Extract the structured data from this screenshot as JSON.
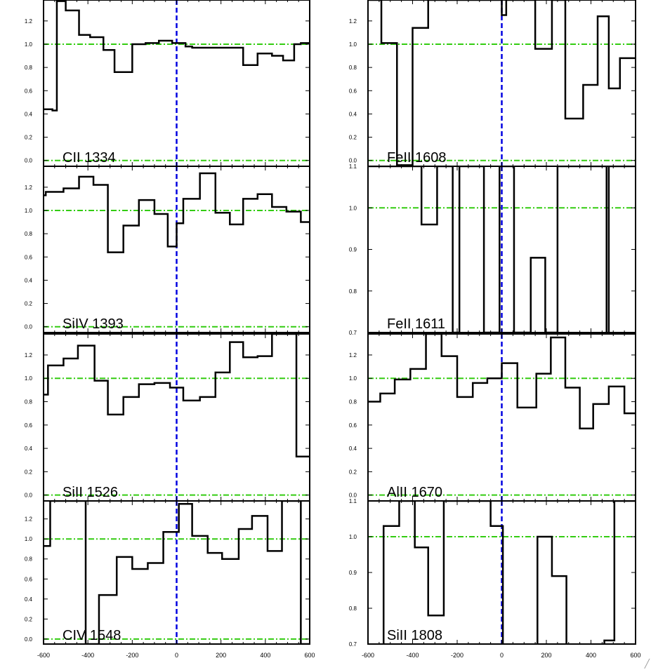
{
  "chart_data": [
    {
      "type": "line",
      "panel_label": "CII 1334",
      "ylim": [
        -0.05,
        1.38
      ],
      "yticks": [
        {
          "v": 0.0,
          "t": "0.0"
        },
        {
          "v": 0.2,
          "t": "0.2"
        },
        {
          "v": 0.4,
          "t": "0.4"
        },
        {
          "v": 0.6,
          "t": "0.6"
        },
        {
          "v": 0.8,
          "t": "0.8"
        },
        {
          "v": 1.0,
          "t": "1.0"
        },
        {
          "v": 1.2,
          "t": "1.2"
        }
      ],
      "xlim": [
        -600,
        600
      ],
      "xticks": [],
      "x": [
        -600,
        -560,
        -540,
        -500,
        -440,
        -390,
        -330,
        -280,
        -200,
        -140,
        -80,
        -20,
        40,
        70,
        300,
        365,
        430,
        480,
        530,
        560
      ],
      "y": [
        0.44,
        0.43,
        1.37,
        1.29,
        1.08,
        1.06,
        0.95,
        0.76,
        1.0,
        1.01,
        1.03,
        1.01,
        0.98,
        0.97,
        0.82,
        0.92,
        0.9,
        0.86,
        1.0,
        1.01
      ]
    },
    {
      "type": "line",
      "panel_label": "FeII 1608",
      "ylim": [
        -0.05,
        1.38
      ],
      "yticks": [
        {
          "v": 0.0,
          "t": "0.0"
        },
        {
          "v": 0.2,
          "t": "0.2"
        },
        {
          "v": 0.4,
          "t": "0.4"
        },
        {
          "v": 0.6,
          "t": "0.6"
        },
        {
          "v": 0.8,
          "t": "0.8"
        },
        {
          "v": 1.0,
          "t": "1.0"
        },
        {
          "v": 1.2,
          "t": "1.2"
        }
      ],
      "xlim": [
        -600,
        600
      ],
      "xticks": [],
      "x": [
        -600,
        -560,
        -540,
        -470,
        -400,
        -330,
        -255,
        0,
        20,
        50,
        150,
        225,
        285,
        365,
        430,
        480,
        530,
        560
      ],
      "y": [
        1.38,
        1.38,
        1.01,
        -0.04,
        1.14,
        1.38,
        1.38,
        1.25,
        1.38,
        1.38,
        0.96,
        1.38,
        0.36,
        0.65,
        1.24,
        0.62,
        0.88,
        0.88
      ]
    },
    {
      "type": "line",
      "panel_label": "SiIV 1393",
      "ylim": [
        -0.05,
        1.38
      ],
      "yticks": [
        {
          "v": 0.0,
          "t": "0.0"
        },
        {
          "v": 0.2,
          "t": "0.2"
        },
        {
          "v": 0.4,
          "t": "0.4"
        },
        {
          "v": 0.6,
          "t": "0.6"
        },
        {
          "v": 0.8,
          "t": "0.8"
        },
        {
          "v": 1.0,
          "t": "1.0"
        },
        {
          "v": 1.2,
          "t": "1.2"
        }
      ],
      "xlim": [
        -600,
        600
      ],
      "xticks": [],
      "x": [
        -600,
        -590,
        -510,
        -440,
        -375,
        -310,
        -240,
        -170,
        -100,
        -40,
        0,
        30,
        105,
        175,
        240,
        300,
        365,
        430,
        495,
        560,
        590
      ],
      "y": [
        1.13,
        1.16,
        1.19,
        1.29,
        1.22,
        0.64,
        0.87,
        1.09,
        0.97,
        0.69,
        0.89,
        1.1,
        1.32,
        0.98,
        0.88,
        1.1,
        1.14,
        1.03,
        0.99,
        0.9,
        0.9
      ]
    },
    {
      "type": "line",
      "panel_label": "FeII 1611",
      "ylim": [
        0.7,
        1.1
      ],
      "yticks": [
        {
          "v": 0.7,
          "t": "0.7"
        },
        {
          "v": 0.8,
          "t": "0.8"
        },
        {
          "v": 0.9,
          "t": "0.9"
        },
        {
          "v": 1.0,
          "t": "1.0"
        },
        {
          "v": 1.1,
          "t": "1.1"
        }
      ],
      "xlim": [
        -600,
        600
      ],
      "xticks": [],
      "x": [
        -600,
        -360,
        -290,
        -220,
        -190,
        -80,
        -10,
        55,
        130,
        195,
        250,
        470,
        480
      ],
      "y": [
        1.1,
        0.96,
        1.1,
        0.7,
        1.1,
        0.7,
        1.1,
        0.7,
        0.88,
        0.7,
        1.1,
        0.63,
        1.1
      ]
    },
    {
      "type": "line",
      "panel_label": "SiII 1526",
      "ylim": [
        -0.05,
        1.38
      ],
      "yticks": [
        {
          "v": 0.0,
          "t": "0.0"
        },
        {
          "v": 0.2,
          "t": "0.2"
        },
        {
          "v": 0.4,
          "t": "0.4"
        },
        {
          "v": 0.6,
          "t": "0.6"
        },
        {
          "v": 0.8,
          "t": "0.8"
        },
        {
          "v": 1.0,
          "t": "1.0"
        },
        {
          "v": 1.2,
          "t": "1.2"
        }
      ],
      "xlim": [
        -600,
        600
      ],
      "xticks": [],
      "x": [
        -600,
        -580,
        -510,
        -445,
        -370,
        -310,
        -240,
        -170,
        -100,
        -30,
        30,
        105,
        175,
        240,
        300,
        365,
        430,
        470,
        540,
        560
      ],
      "y": [
        0.86,
        1.11,
        1.17,
        1.28,
        0.98,
        0.69,
        0.84,
        0.95,
        0.96,
        0.92,
        0.81,
        0.84,
        1.05,
        1.31,
        1.18,
        1.19,
        1.38,
        1.38,
        0.33,
        0.33
      ]
    },
    {
      "type": "line",
      "panel_label": "AlII 1670",
      "ylim": [
        -0.05,
        1.38
      ],
      "yticks": [
        {
          "v": 0.0,
          "t": "0.0"
        },
        {
          "v": 0.2,
          "t": "0.2"
        },
        {
          "v": 0.4,
          "t": "0.4"
        },
        {
          "v": 0.6,
          "t": "0.6"
        },
        {
          "v": 0.8,
          "t": "0.8"
        },
        {
          "v": 1.0,
          "t": "1.0"
        },
        {
          "v": 1.2,
          "t": "1.2"
        }
      ],
      "xlim": [
        -600,
        600
      ],
      "xticks": [],
      "x": [
        -600,
        -545,
        -480,
        -410,
        -340,
        -270,
        -200,
        -130,
        -65,
        0,
        70,
        155,
        220,
        285,
        350,
        410,
        480,
        550,
        590
      ],
      "y": [
        0.8,
        0.87,
        0.99,
        1.08,
        1.38,
        1.19,
        0.84,
        0.96,
        1.0,
        1.13,
        0.75,
        1.04,
        1.35,
        0.92,
        0.57,
        0.78,
        0.93,
        0.7,
        0.7
      ]
    },
    {
      "type": "line",
      "panel_label": "CIV 1548",
      "ylim": [
        -0.05,
        1.38
      ],
      "yticks": [
        {
          "v": 0.0,
          "t": "0.0"
        },
        {
          "v": 0.2,
          "t": "0.2"
        },
        {
          "v": 0.4,
          "t": "0.4"
        },
        {
          "v": 0.6,
          "t": "0.6"
        },
        {
          "v": 0.8,
          "t": "0.8"
        },
        {
          "v": 1.0,
          "t": "1.0"
        },
        {
          "v": 1.2,
          "t": "1.2"
        }
      ],
      "xlim": [
        -600,
        600
      ],
      "xticks": [
        {
          "v": -600,
          "t": "-600"
        },
        {
          "v": -400,
          "t": "-400"
        },
        {
          "v": -200,
          "t": "-200"
        },
        {
          "v": 0,
          "t": "0"
        },
        {
          "v": 200,
          "t": "200"
        },
        {
          "v": 400,
          "t": "400"
        },
        {
          "v": 600,
          "t": "600"
        }
      ],
      "x": [
        -600,
        -570,
        -410,
        -350,
        -270,
        -200,
        -130,
        -60,
        10,
        70,
        140,
        205,
        280,
        340,
        410,
        475,
        560,
        590
      ],
      "y": [
        0.93,
        1.38,
        -0.05,
        0.44,
        0.82,
        0.7,
        0.76,
        1.07,
        1.35,
        1.03,
        0.86,
        0.8,
        1.1,
        1.23,
        0.88,
        1.38,
        -0.05,
        -0.05
      ]
    },
    {
      "type": "line",
      "panel_label": "SiII 1808",
      "ylim": [
        0.7,
        1.1
      ],
      "yticks": [
        {
          "v": 0.7,
          "t": "0.7"
        },
        {
          "v": 0.8,
          "t": "0.8"
        },
        {
          "v": 0.9,
          "t": "0.9"
        },
        {
          "v": 1.0,
          "t": "1.0"
        },
        {
          "v": 1.1,
          "t": "1.1"
        }
      ],
      "xlim": [
        -600,
        600
      ],
      "xticks": [
        {
          "v": -600,
          "t": "-600"
        },
        {
          "v": -400,
          "t": "-400"
        },
        {
          "v": -200,
          "t": "-200"
        },
        {
          "v": 0,
          "t": "0"
        },
        {
          "v": 200,
          "t": "200"
        },
        {
          "v": 400,
          "t": "400"
        },
        {
          "v": 600,
          "t": "600"
        }
      ],
      "x": [
        -600,
        -530,
        -460,
        -390,
        -330,
        -260,
        -50,
        5,
        160,
        225,
        290,
        460,
        505
      ],
      "y": [
        0.63,
        1.03,
        1.1,
        0.97,
        0.78,
        1.1,
        1.03,
        0.63,
        1.0,
        0.89,
        0.63,
        0.71,
        1.1
      ]
    }
  ],
  "colors": {
    "data_line": "#000000",
    "continuum_line": "#33cc11",
    "zero_velocity_line": "#0000e0"
  },
  "icons": {
    "resize_grip": "resize-grip-icon"
  }
}
